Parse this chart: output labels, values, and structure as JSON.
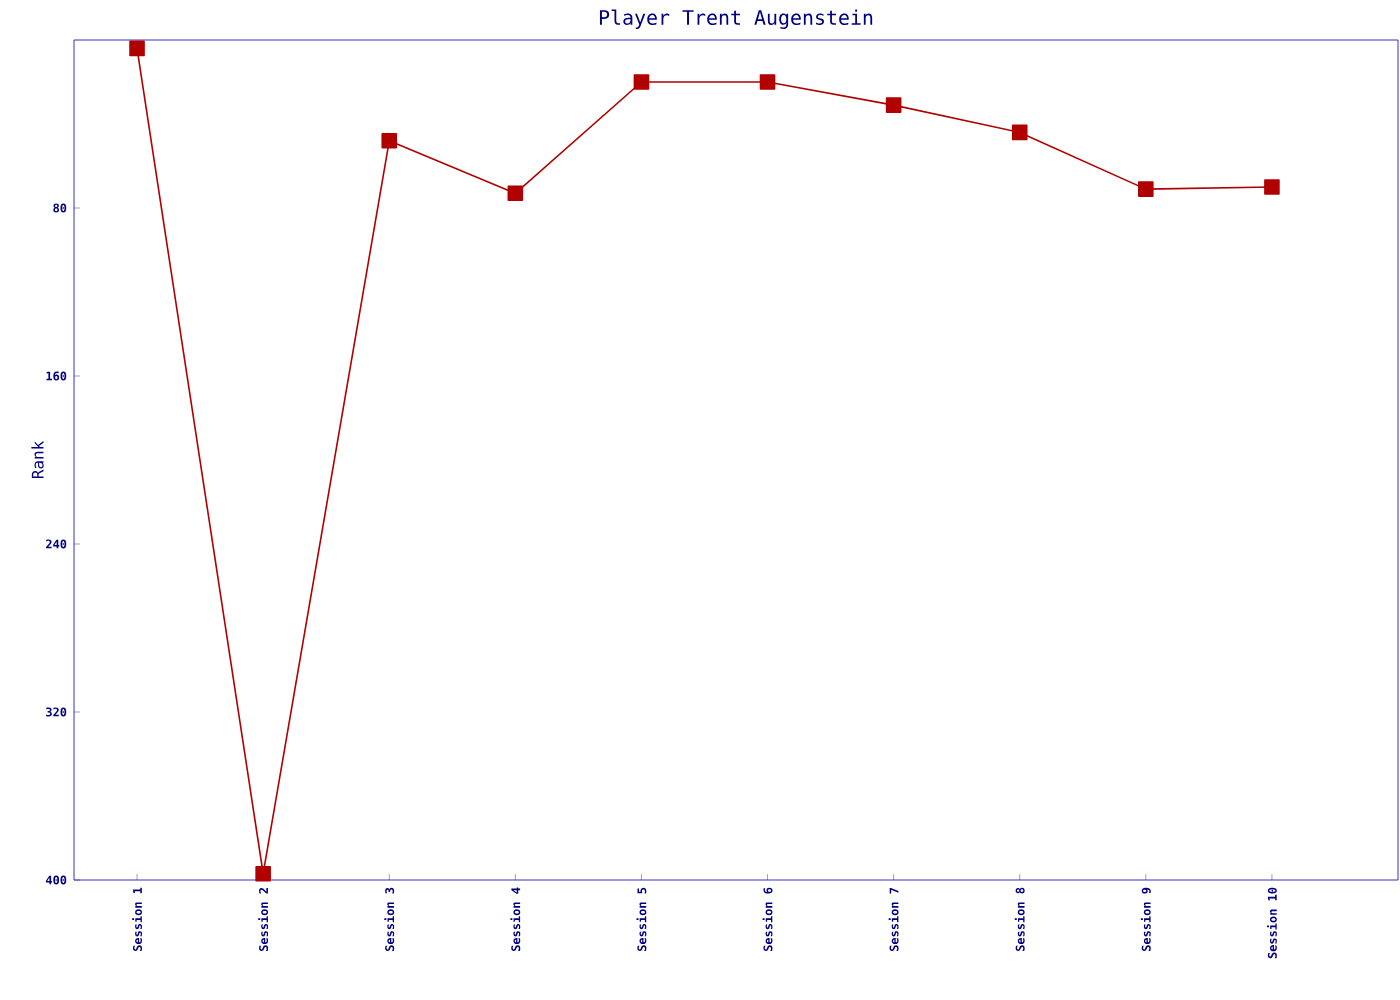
{
  "chart_data": {
    "type": "line",
    "title": "Player Trent Augenstein",
    "ylabel": "Rank",
    "categories": [
      "Session 1",
      "Session 2",
      "Session 3",
      "Session 4",
      "Session 5",
      "Session 6",
      "Session 7",
      "Session 8",
      "Session 9",
      "Session 10"
    ],
    "series": [
      {
        "color": "#b00000",
        "values": [
          4,
          397,
          48,
          73,
          20,
          20,
          31,
          44,
          71,
          70
        ]
      }
    ],
    "ylim": [
      400,
      0
    ],
    "yticks": [
      80,
      160,
      240,
      320,
      400
    ],
    "marker": "square",
    "line_style": "solid",
    "grid": false
  }
}
